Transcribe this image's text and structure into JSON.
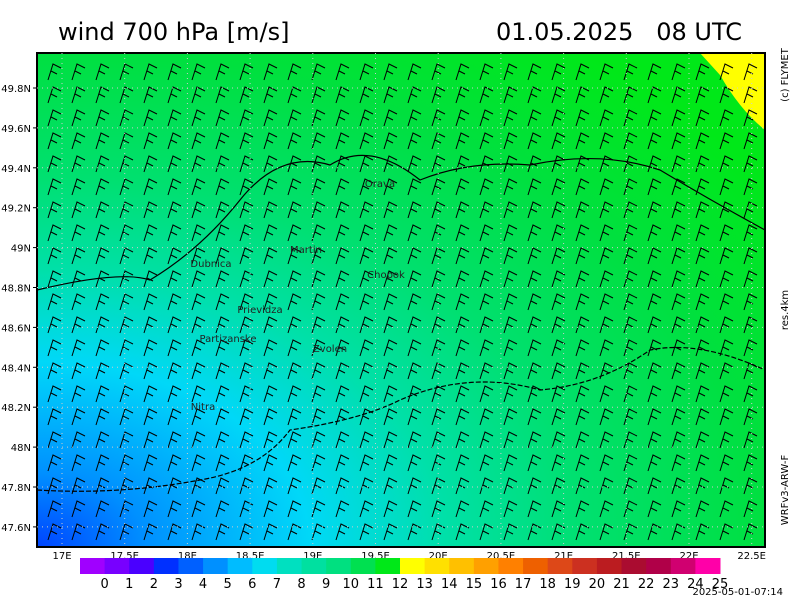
{
  "header": {
    "title": "wind 700 hPa [m/s]",
    "datetime": "01.05.2025   08 UTC"
  },
  "side_labels": {
    "copyright": "(c) FLYMET",
    "resolution": "res.4km",
    "model": "WRFv3-ARW-F"
  },
  "map": {
    "lat_ticks": [
      "49.8N",
      "49.6N",
      "49.4N",
      "49.2N",
      "49N",
      "48.8N",
      "48.6N",
      "48.4N",
      "48.2N",
      "48N",
      "47.8N",
      "47.6N"
    ],
    "lon_ticks": [
      "17E",
      "17.5E",
      "18E",
      "18.5E",
      "19E",
      "19.5E",
      "20E",
      "20.5E",
      "21E",
      "21.5E",
      "22E",
      "22.5E"
    ],
    "cities": [
      "Orava",
      "Martin",
      "Dubnica",
      "Chopok",
      "Prievidza",
      "Partizanske",
      "Zvolen",
      "Nitra"
    ]
  },
  "colorbar": {
    "labels": [
      "0",
      "1",
      "2",
      "3",
      "4",
      "5",
      "6",
      "7",
      "8",
      "9",
      "10",
      "11",
      "12",
      "13",
      "14",
      "15",
      "16",
      "17",
      "18",
      "19",
      "20",
      "21",
      "22",
      "23",
      "24",
      "25"
    ],
    "colors": [
      "#a000ff",
      "#7800ff",
      "#4a00ff",
      "#0030ff",
      "#0060ff",
      "#0090ff",
      "#00bcff",
      "#00dcf0",
      "#00e0c0",
      "#00e0a0",
      "#00e080",
      "#00e050",
      "#00e818",
      "#ffff00",
      "#ffe000",
      "#ffc000",
      "#ffa000",
      "#ff8000",
      "#ee6000",
      "#dd4818",
      "#cc3020",
      "#bb1c20",
      "#aa0c30",
      "#b00048",
      "#d00070",
      "#ff00a8"
    ]
  },
  "footer": {
    "timestamp": "2025-05-01-07:14"
  }
}
